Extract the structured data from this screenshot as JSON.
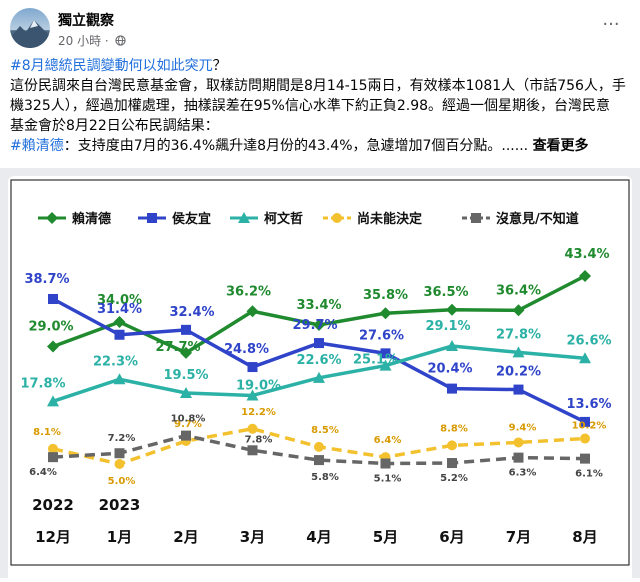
{
  "page": {
    "name": "獨立觀察",
    "time": "20 小時",
    "separator": "·"
  },
  "post": {
    "hashtag_title": "#8月總統民調變動何以如此突兀",
    "title_mark": "？",
    "line1": "這份民調來自台灣民意基金會，取樣訪問期間是8月14-15兩日，有效樣本1081人（市話756人，手",
    "line2": "機325人），經過加權處理，抽樣誤差在95%信心水準下約正負2.98。經過一個星期後，台灣民意",
    "line3": "基金會於8月22日公布民調結果：",
    "tag2": "#賴清德",
    "line4": "：支持度由7月的36.4%飆升達8月份的43.4%，急遽增加7個百分點。......",
    "see_more": "查看更多"
  },
  "colors": {
    "lai": "#1f8a2e",
    "hou": "#2f44c9",
    "ko": "#2bb1a5",
    "undecided": "#f3c12e",
    "noopinion": "#666666"
  },
  "icons": {
    "more": "more-icon",
    "globe": "globe-icon"
  },
  "chart_data": {
    "type": "line",
    "categories": [
      "12月",
      "1月",
      "2月",
      "3月",
      "4月",
      "5月",
      "6月",
      "7月",
      "8月"
    ],
    "year_labels": [
      "2022",
      "2023"
    ],
    "legend_position": "top",
    "series": [
      {
        "name": "賴清德",
        "color": "#1f8a2e",
        "style": "solid",
        "marker": "diamond",
        "label_color": "#1f8a2e",
        "values": [
          29.0,
          34.0,
          27.7,
          36.2,
          33.4,
          35.8,
          36.5,
          36.4,
          43.4
        ],
        "labels": [
          "29.0%",
          "34.0%",
          "27.7%",
          "36.2%",
          "33.4%",
          "35.8%",
          "36.5%",
          "36.4%",
          "43.4%"
        ]
      },
      {
        "name": "侯友宜",
        "color": "#2f44c9",
        "style": "solid",
        "marker": "square",
        "label_color": "#2f44c9",
        "values": [
          38.7,
          31.4,
          32.4,
          24.8,
          29.7,
          27.6,
          20.4,
          20.2,
          13.6
        ],
        "labels": [
          "38.7%",
          "31.4%",
          "32.4%",
          "24.8%",
          "29.7%",
          "27.6%",
          "20.4%",
          "20.2%",
          "13.6%"
        ]
      },
      {
        "name": "柯文哲",
        "color": "#2bb1a5",
        "style": "solid",
        "marker": "triangle",
        "label_color": "#2bb1a5",
        "values": [
          17.8,
          22.3,
          19.5,
          19.0,
          22.6,
          25.1,
          29.1,
          27.8,
          26.6
        ],
        "labels": [
          "17.8%",
          "22.3%",
          "19.5%",
          "19.0%",
          "22.6%",
          "25.1%",
          "29.1%",
          "27.8%",
          "26.6%"
        ]
      },
      {
        "name": "尚未能決定",
        "color": "#f3c12e",
        "style": "dashed",
        "marker": "circle",
        "label_color": "#d99a00",
        "values": [
          8.1,
          5.0,
          9.7,
          12.2,
          8.5,
          6.4,
          8.8,
          9.4,
          10.2
        ],
        "labels": [
          "8.1%",
          "5.0%",
          "9.7%",
          "12.2%",
          "8.5%",
          "6.4%",
          "8.8%",
          "9.4%",
          "10.2%"
        ]
      },
      {
        "name": "沒意見/不知道",
        "color": "#666666",
        "style": "dashed",
        "marker": "square",
        "label_color": "#444444",
        "values": [
          6.4,
          7.2,
          10.8,
          7.8,
          5.8,
          5.1,
          5.2,
          6.3,
          6.1
        ],
        "labels": [
          "6.4%",
          "7.2%",
          "10.8%",
          "7.8%",
          "5.8%",
          "5.1%",
          "5.2%",
          "6.3%",
          "6.1%"
        ]
      }
    ]
  }
}
